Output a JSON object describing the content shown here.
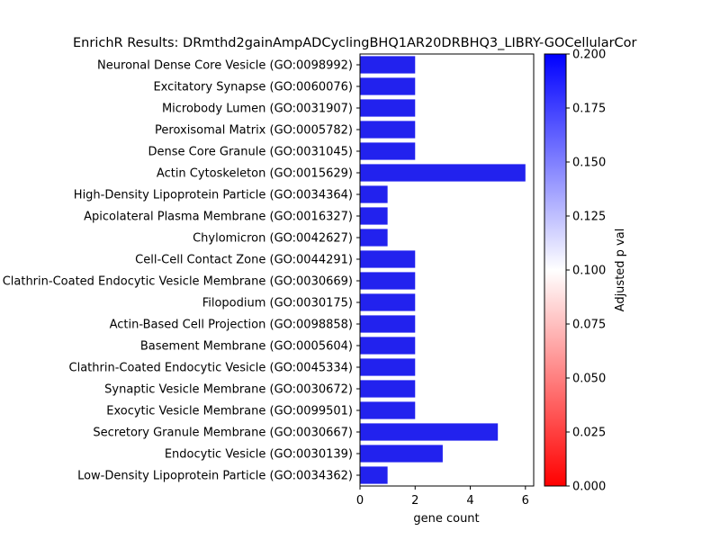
{
  "chart_data": {
    "type": "bar",
    "orientation": "horizontal",
    "title": "EnrichR Results: DRmthd2gainAmpADCyclingBHQ1AR20DRBHQ3_LIBRY-GOCellularCor",
    "xlabel": "gene count",
    "ylabel": "",
    "xlim": [
      0,
      6.3
    ],
    "xticks": [
      "0",
      "2",
      "4",
      "6"
    ],
    "grid": false,
    "bar_color": "#2222ee",
    "categories": [
      "Neuronal Dense Core Vesicle (GO:0098992)",
      "Excitatory Synapse (GO:0060076)",
      "Microbody Lumen (GO:0031907)",
      "Peroxisomal Matrix (GO:0005782)",
      "Dense Core Granule (GO:0031045)",
      "Actin Cytoskeleton (GO:0015629)",
      "High-Density Lipoprotein Particle (GO:0034364)",
      "Apicolateral Plasma Membrane (GO:0016327)",
      "Chylomicron (GO:0042627)",
      "Cell-Cell Contact Zone (GO:0044291)",
      "Clathrin-Coated Endocytic Vesicle Membrane (GO:0030669)",
      "Filopodium (GO:0030175)",
      "Actin-Based Cell Projection (GO:0098858)",
      "Basement Membrane (GO:0005604)",
      "Clathrin-Coated Endocytic Vesicle (GO:0045334)",
      "Synaptic Vesicle Membrane (GO:0030672)",
      "Exocytic Vesicle Membrane (GO:0099501)",
      "Secretory Granule Membrane (GO:0030667)",
      "Endocytic Vesicle (GO:0030139)",
      "Low-Density Lipoprotein Particle (GO:0034362)"
    ],
    "values": [
      2,
      2,
      2,
      2,
      2,
      6,
      1,
      1,
      1,
      2,
      2,
      2,
      2,
      2,
      2,
      2,
      2,
      5,
      3,
      1
    ],
    "colorbar": {
      "label": "Adjusted p val",
      "range": [
        0.0,
        0.2
      ],
      "ticks": [
        "0.000",
        "0.025",
        "0.050",
        "0.075",
        "0.100",
        "0.125",
        "0.150",
        "0.175",
        "0.200"
      ],
      "colors": [
        "#ff0000",
        "#ffffff",
        "#0000ff"
      ]
    }
  }
}
